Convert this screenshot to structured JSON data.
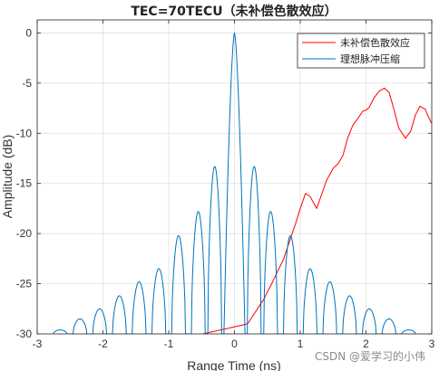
{
  "chart_data": {
    "type": "line",
    "title": "TEC=70TECU（未补偿色散效应）",
    "xlabel": "Range Time (ns)",
    "ylabel": "Amplitude (dB)",
    "xlim": [
      -3,
      3
    ],
    "ylim": [
      -30,
      1.3
    ],
    "x_ticks": [
      -3,
      -2,
      -1,
      0,
      1,
      2,
      3
    ],
    "y_ticks": [
      0,
      -5,
      -10,
      -15,
      -20,
      -25,
      -30
    ],
    "x_tick_labels": [
      "-3",
      "-2",
      "-1",
      "0",
      "1",
      "2",
      "3"
    ],
    "y_tick_labels": [
      "0",
      "-5",
      "-10",
      "-15",
      "-20",
      "-25",
      "-30"
    ],
    "grid": true,
    "legend_position": "top-right",
    "series": [
      {
        "name": "未补偿色散效应",
        "color": "#ff0000",
        "x": [
          -0.48,
          0.2,
          0.45,
          0.58,
          0.75,
          0.85,
          0.93,
          1.0,
          1.08,
          1.15,
          1.25,
          1.4,
          1.5,
          1.58,
          1.65,
          1.72,
          1.8,
          1.88,
          1.95,
          2.0,
          2.05,
          2.12,
          2.2,
          2.28,
          2.35,
          2.42,
          2.5,
          2.6,
          2.68,
          2.75,
          2.82,
          2.9,
          2.98,
          3.0
        ],
        "y": [
          -30.0,
          -29.0,
          -26.5,
          -24.8,
          -22.5,
          -20.5,
          -19.0,
          -17.5,
          -16.0,
          -16.3,
          -17.5,
          -14.7,
          -13.5,
          -13.0,
          -12.2,
          -10.5,
          -9.2,
          -8.5,
          -7.8,
          -7.7,
          -7.4,
          -6.5,
          -5.8,
          -5.5,
          -5.9,
          -7.5,
          -9.5,
          -10.5,
          -9.8,
          -8.2,
          -7.3,
          -7.6,
          -8.8,
          -9.0
        ]
      },
      {
        "name": "理想脉冲压缩",
        "color": "#0072bd",
        "x": [
          -2.65,
          -2.35,
          -2.05,
          -1.75,
          -1.45,
          -1.15,
          -0.85,
          -0.55,
          -0.3,
          0.0,
          0.3,
          0.55,
          0.85,
          1.15,
          1.45,
          1.75,
          2.05,
          2.35,
          2.65
        ],
        "y": [
          -29.6,
          -28.5,
          -27.5,
          -26.2,
          -24.8,
          -23.5,
          -20.2,
          -17.8,
          -13.3,
          0.0,
          -13.3,
          -17.8,
          -20.2,
          -23.5,
          -24.8,
          -26.2,
          -27.5,
          -28.5,
          -29.6
        ]
      }
    ]
  },
  "watermark": "CSDN @爱学习的小伟"
}
